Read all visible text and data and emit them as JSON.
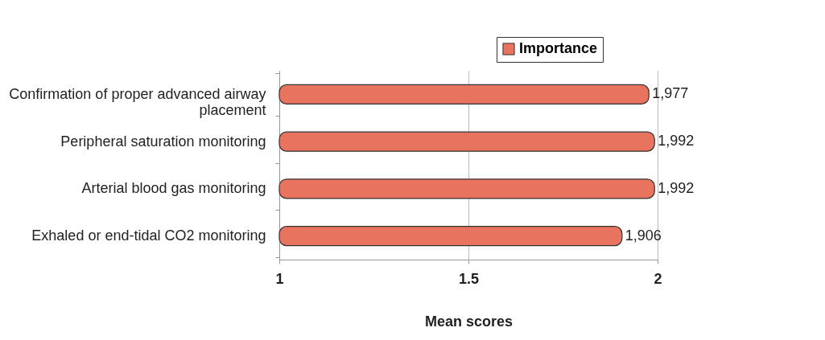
{
  "chart_data": {
    "type": "bar",
    "orientation": "horizontal",
    "xlabel": "Mean scores",
    "categories": [
      "Confirmation of proper advanced airway placement",
      "Peripheral saturation monitoring",
      "Arterial blood gas monitoring",
      "Exhaled or end-tidal CO2 monitoring"
    ],
    "series": [
      {
        "name": "Importance",
        "color": "#e8735f",
        "values": [
          1.977,
          1.992,
          1.992,
          1.906
        ]
      }
    ],
    "value_labels": [
      "1,977",
      "1,992",
      "1,992",
      "1,906"
    ],
    "xlim": [
      1,
      2
    ],
    "xticks": [
      1,
      1.5,
      2
    ],
    "grid": "x",
    "legend": "top right"
  }
}
